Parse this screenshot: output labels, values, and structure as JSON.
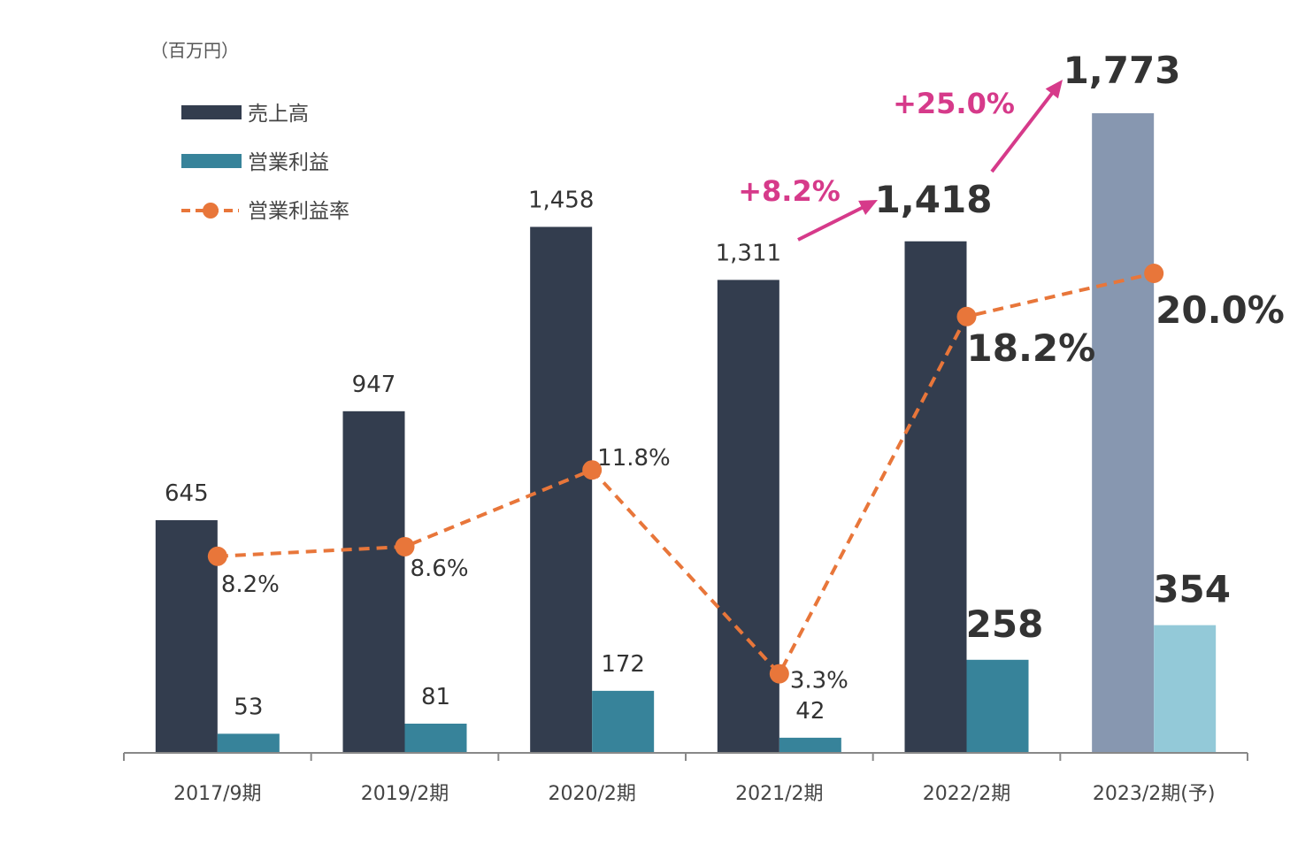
{
  "chart_data": {
    "type": "bar",
    "unit_label": "（百万円）",
    "categories": [
      "2017/9期",
      "2019/2期",
      "2020/2期",
      "2021/2期",
      "2022/2期",
      "2023/2期(予)"
    ],
    "series": [
      {
        "name": "売上高",
        "kind": "bar",
        "values": [
          645,
          947,
          1458,
          1311,
          1418,
          1773
        ],
        "labels": [
          "645",
          "947",
          "1,458",
          "1,311",
          "1,418",
          "1,773"
        ],
        "color": "#333d4e",
        "forecast_color": "#8797b0"
      },
      {
        "name": "営業利益",
        "kind": "bar",
        "values": [
          53,
          81,
          172,
          42,
          258,
          354
        ],
        "labels": [
          "53",
          "81",
          "172",
          "42",
          "258",
          "354"
        ],
        "color": "#37839a",
        "forecast_color": "#93c9d8"
      },
      {
        "name": "営業利益率",
        "kind": "line",
        "values": [
          8.2,
          8.6,
          11.8,
          3.3,
          18.2,
          20.0
        ],
        "labels": [
          "8.2%",
          "8.6%",
          "11.8%",
          "3.3%",
          "18.2%",
          "20.0%"
        ],
        "color": "#e8763a",
        "style": "dashed"
      }
    ],
    "forecast_index": 5,
    "ylim": [
      0,
      1773
    ],
    "legend_position": "top-left",
    "annotations": [
      {
        "text": "+8.2%",
        "from": "2021/2期",
        "to": "2022/2期",
        "color": "#d63a8a"
      },
      {
        "text": "+25.0%",
        "from": "2022/2期",
        "to": "2023/2期(予)",
        "color": "#d63a8a"
      }
    ]
  }
}
